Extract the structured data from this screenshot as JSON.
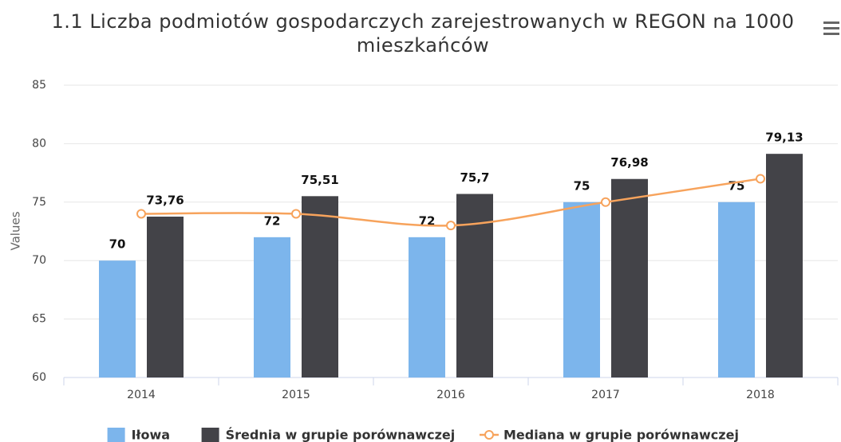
{
  "chart_data": {
    "type": "bar",
    "title": "1.1 Liczba podmiotów gospodarczych zarejestrowanych w REGON na 1000 mieszkańców",
    "y_label": "Values",
    "categories": [
      "2014",
      "2015",
      "2016",
      "2017",
      "2018"
    ],
    "series": [
      {
        "name": "Iłowa",
        "type": "bar",
        "color": "#7cb5ec",
        "values": [
          70,
          72,
          72,
          75,
          75
        ]
      },
      {
        "name": "Średnia w grupie porównawczej",
        "type": "bar",
        "color": "#434348",
        "values": [
          73.76,
          75.51,
          75.7,
          76.98,
          79.13
        ],
        "value_labels": [
          "73,76",
          "75,51",
          "75,7",
          "76,98",
          "79,13"
        ]
      },
      {
        "name": "Mediana w grupie porównawczej",
        "type": "line",
        "color": "#f7a35c",
        "values": [
          74,
          74,
          73,
          75,
          77
        ]
      }
    ],
    "ylim": [
      60,
      85
    ],
    "yticks": [
      60,
      65,
      70,
      75,
      80,
      85
    ],
    "grid": true
  }
}
